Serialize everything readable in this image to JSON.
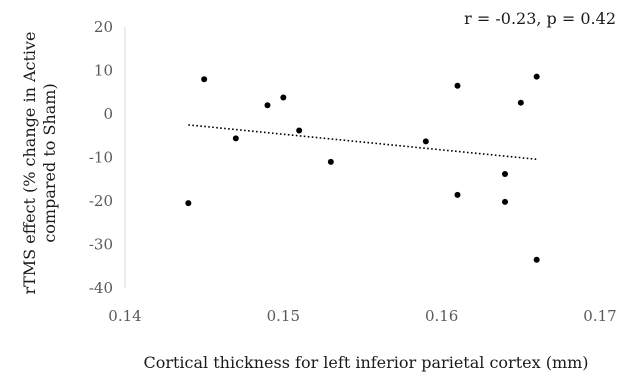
{
  "chart_data": {
    "type": "scatter",
    "title": "",
    "annotation": "r = -0.23, p = 0.42",
    "xlabel": "Cortical thickness for left inferior parietal cortex (mm)",
    "ylabel_lines": [
      "rTMS effect (% change in Active",
      "compared to Sham)"
    ],
    "xlim": [
      0.14,
      0.17
    ],
    "ylim": [
      -40,
      20
    ],
    "xticks": [
      0.14,
      0.15,
      0.16,
      0.17
    ],
    "xtick_labels": [
      "0.14",
      "0.15",
      "0.16",
      "0.17"
    ],
    "yticks": [
      -40,
      -30,
      -20,
      -10,
      0,
      10,
      20
    ],
    "ytick_labels": [
      "-40",
      "-30",
      "-20",
      "-10",
      "0",
      "10",
      "20"
    ],
    "grid": false,
    "trendline": {
      "style": "dotted",
      "x": [
        0.144,
        0.166
      ],
      "y": [
        -2.5,
        -10.4
      ]
    },
    "points": [
      {
        "x": 0.144,
        "y": -20.5
      },
      {
        "x": 0.145,
        "y": 8.0
      },
      {
        "x": 0.147,
        "y": -5.6
      },
      {
        "x": 0.149,
        "y": 2.0
      },
      {
        "x": 0.15,
        "y": 3.8
      },
      {
        "x": 0.151,
        "y": -3.8
      },
      {
        "x": 0.153,
        "y": -11.0
      },
      {
        "x": 0.159,
        "y": -6.3
      },
      {
        "x": 0.161,
        "y": 6.5
      },
      {
        "x": 0.161,
        "y": -18.6
      },
      {
        "x": 0.164,
        "y": -13.8
      },
      {
        "x": 0.164,
        "y": -20.2
      },
      {
        "x": 0.165,
        "y": 2.6
      },
      {
        "x": 0.166,
        "y": 8.6
      },
      {
        "x": 0.166,
        "y": -33.5
      }
    ],
    "colors": {
      "points": "#000000",
      "trendline": "#000000",
      "axis": "#d9d9d9",
      "tick_text": "#595959",
      "text": "#1a1a1a"
    }
  }
}
